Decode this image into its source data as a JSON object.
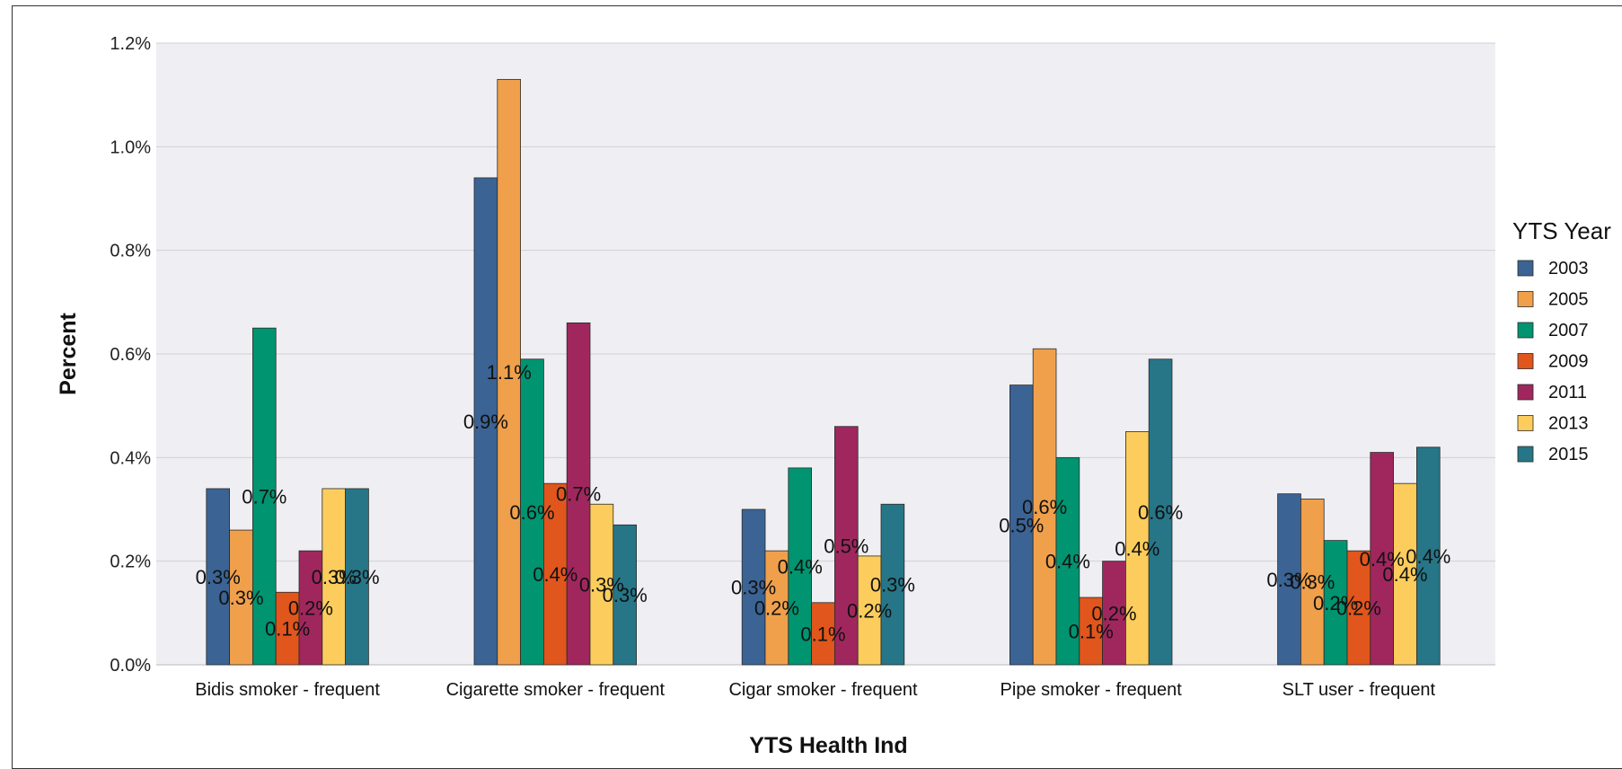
{
  "chart_data": {
    "type": "bar",
    "xlabel": "YTS Health Ind",
    "ylabel": "Percent",
    "ylim": [
      0,
      1.2
    ],
    "yticks": [
      "0.0%",
      "0.2%",
      "0.4%",
      "0.6%",
      "0.8%",
      "1.0%",
      "1.2%"
    ],
    "categories": [
      "Bidis smoker - frequent",
      "Cigarette smoker - frequent",
      "Cigar smoker - frequent",
      "Pipe smoker - frequent",
      "SLT user - frequent"
    ],
    "legend_title": "YTS Year",
    "legend_position": "right",
    "grid": true,
    "plot_background": "#efeff3",
    "series": [
      {
        "name": "2003",
        "color": "#3b6394",
        "values": [
          0.34,
          0.94,
          0.3,
          0.54,
          0.33
        ],
        "labels": [
          "0.3%",
          "0.9%",
          "0.3%",
          "0.5%",
          "0.3%"
        ]
      },
      {
        "name": "2005",
        "color": "#f0a04b",
        "values": [
          0.26,
          1.13,
          0.22,
          0.61,
          0.32
        ],
        "labels": [
          "0.3%",
          "1.1%",
          "0.2%",
          "0.6%",
          "0.3%"
        ]
      },
      {
        "name": "2007",
        "color": "#009470",
        "values": [
          0.65,
          0.59,
          0.38,
          0.4,
          0.24
        ],
        "labels": [
          "0.7%",
          "0.6%",
          "0.4%",
          "0.4%",
          "0.2%"
        ]
      },
      {
        "name": "2009",
        "color": "#e0561c",
        "values": [
          0.14,
          0.35,
          0.12,
          0.13,
          0.22
        ],
        "labels": [
          "0.1%",
          "0.4%",
          "0.1%",
          "0.1%",
          "0.2%"
        ]
      },
      {
        "name": "2011",
        "color": "#a0275e",
        "values": [
          0.22,
          0.66,
          0.46,
          0.2,
          0.41
        ],
        "labels": [
          "0.2%",
          "0.7%",
          "0.5%",
          "0.2%",
          "0.4%"
        ]
      },
      {
        "name": "2013",
        "color": "#fccd5c",
        "values": [
          0.34,
          0.31,
          0.21,
          0.45,
          0.35
        ],
        "labels": [
          "0.3%",
          "0.3%",
          "0.2%",
          "0.4%",
          "0.4%"
        ]
      },
      {
        "name": "2015",
        "color": "#267688",
        "values": [
          0.34,
          0.27,
          0.31,
          0.59,
          0.42
        ],
        "labels": [
          "0.3%",
          "0.3%",
          "0.3%",
          "0.6%",
          "0.4%"
        ]
      }
    ]
  }
}
